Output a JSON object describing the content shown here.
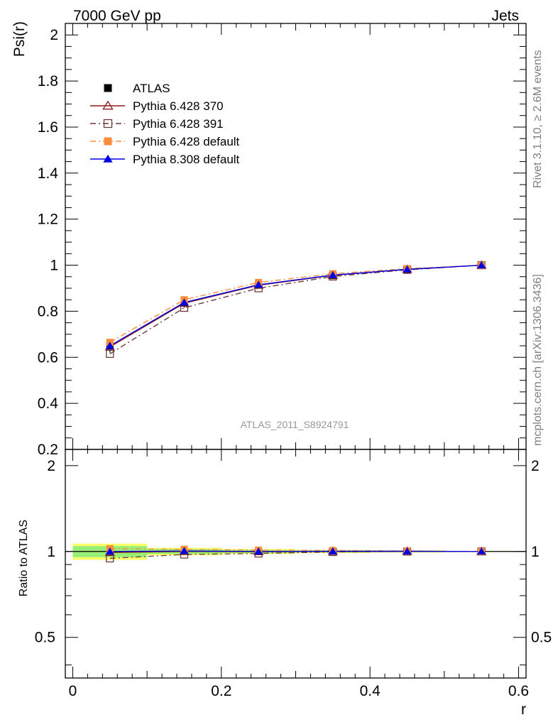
{
  "header": {
    "left": "7000 GeV pp",
    "right": "Jets"
  },
  "side_texts": {
    "rivet": "Rivet 3.1.10, ≥ 2.6M events",
    "mcplots": "mcplots.cern.ch [arXiv:1306.3436]"
  },
  "watermark": "ATLAS_2011_S8924791",
  "chart_data": [
    {
      "type": "line",
      "panel": "main",
      "ylabel": "Psi(r)",
      "xlabel": "",
      "xlim": [
        -0.01,
        0.61
      ],
      "ylim": [
        0.2,
        2.05
      ],
      "y_ticks": [
        0.2,
        0.4,
        0.6,
        0.8,
        1,
        1.2,
        1.4,
        1.6,
        1.8,
        2
      ],
      "y_tick_labels": [
        "0.2",
        "0.4",
        "0.6",
        "0.8",
        "1",
        "1.2",
        "1.4",
        "1.6",
        "1.8",
        "2"
      ],
      "legend_position": "top-left",
      "x": [
        0.05,
        0.15,
        0.25,
        0.35,
        0.45,
        0.55
      ],
      "series": [
        {
          "name": "ATLAS",
          "values": [
            0.65,
            0.835,
            0.915,
            0.955,
            0.98,
            1.0
          ],
          "color": "#000000",
          "marker": "square-filled",
          "line": "none",
          "errors": [
            0.03,
            0.02,
            0.012,
            0.008,
            0.006,
            0.0
          ]
        },
        {
          "name": "Pythia 6.428 370",
          "values": [
            0.645,
            0.835,
            0.913,
            0.956,
            0.982,
            1.0
          ],
          "color": "#8b1a1a",
          "marker": "triangle-open",
          "line": "solid"
        },
        {
          "name": "Pythia 6.428 391",
          "values": [
            0.615,
            0.815,
            0.9,
            0.951,
            0.98,
            1.0
          ],
          "color": "#6b3a3a",
          "marker": "square-open",
          "line": "dashdot"
        },
        {
          "name": "Pythia 6.428 default",
          "values": [
            0.665,
            0.85,
            0.925,
            0.963,
            0.985,
            1.0
          ],
          "color": "#ff8c3a",
          "marker": "square-filled",
          "line": "dashdot"
        },
        {
          "name": "Pythia 8.308 default",
          "values": [
            0.65,
            0.838,
            0.915,
            0.957,
            0.982,
            1.0
          ],
          "color": "#0000e6",
          "marker": "triangle-filled",
          "line": "solid"
        }
      ]
    },
    {
      "type": "line",
      "panel": "ratio",
      "ylabel": "Ratio to ATLAS",
      "xlabel": "r",
      "xlim": [
        -0.01,
        0.61
      ],
      "ylim": [
        0.36,
        2.28
      ],
      "y_scale": "log",
      "x_ticks": [
        0,
        0.2,
        0.4,
        0.6
      ],
      "x_tick_labels": [
        "0",
        "0.2",
        "0.4",
        "0.6"
      ],
      "y_ticks": [
        0.5,
        1,
        2
      ],
      "y_tick_labels": [
        "0.5",
        "1",
        "2"
      ],
      "x": [
        0.05,
        0.15,
        0.25,
        0.35,
        0.45,
        0.55
      ],
      "band": {
        "x_edges": [
          0.0,
          0.1,
          0.2,
          0.3,
          0.4,
          0.5,
          0.6
        ],
        "yellow_half_width": [
          0.065,
          0.03,
          0.02,
          0.012,
          0.008,
          0.003
        ],
        "green_half_width": [
          0.045,
          0.02,
          0.012,
          0.008,
          0.005,
          0.002
        ]
      },
      "series": [
        {
          "name": "Pythia 6.428 370",
          "values": [
            0.992,
            1.0,
            0.998,
            1.001,
            1.002,
            1.0
          ],
          "color": "#8b1a1a",
          "marker": "triangle-open",
          "line": "solid"
        },
        {
          "name": "Pythia 6.428 391",
          "values": [
            0.946,
            0.976,
            0.984,
            0.996,
            1.0,
            1.0
          ],
          "color": "#6b3a3a",
          "marker": "square-open",
          "line": "dashdot"
        },
        {
          "name": "Pythia 6.428 default",
          "values": [
            1.023,
            1.018,
            1.011,
            1.008,
            1.005,
            1.0
          ],
          "color": "#ff8c3a",
          "marker": "square-filled",
          "line": "dashdot"
        },
        {
          "name": "Pythia 8.308 default",
          "values": [
            1.0,
            1.004,
            1.0,
            1.002,
            1.002,
            1.0
          ],
          "color": "#0000e6",
          "marker": "triangle-filled",
          "line": "solid"
        }
      ]
    }
  ]
}
